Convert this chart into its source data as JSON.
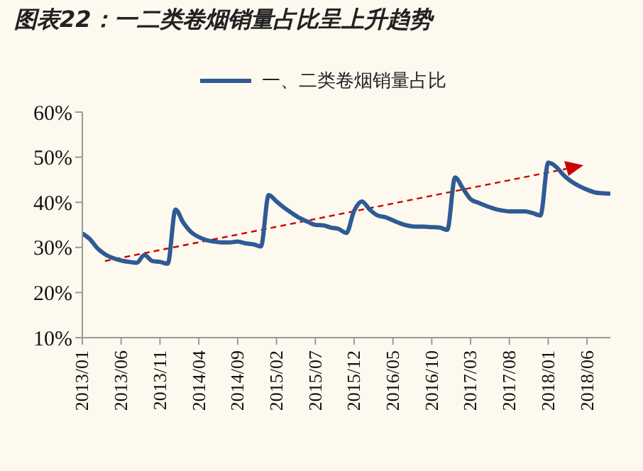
{
  "chart_data": {
    "type": "line",
    "title": "图表22：一二类卷烟销量占比呈上升趋势",
    "x": [
      "2013-01",
      "2013-02",
      "2013-03",
      "2013-04",
      "2013-05",
      "2013-06",
      "2013-07",
      "2013-08",
      "2013-09",
      "2013-10",
      "2013-11",
      "2013-12",
      "2014-01",
      "2014-02",
      "2014-03",
      "2014-04",
      "2014-05",
      "2014-06",
      "2014-07",
      "2014-08",
      "2014-09",
      "2014-10",
      "2014-11",
      "2014-12",
      "2015-01",
      "2015-02",
      "2015-03",
      "2015-04",
      "2015-05",
      "2015-06",
      "2015-07",
      "2015-08",
      "2015-09",
      "2015-10",
      "2015-11",
      "2015-12",
      "2016-01",
      "2016-02",
      "2016-03",
      "2016-04",
      "2016-05",
      "2016-06",
      "2016-07",
      "2016-08",
      "2016-09",
      "2016-10",
      "2016-11",
      "2016-12",
      "2017-01",
      "2017-02",
      "2017-03",
      "2017-04",
      "2017-05",
      "2017-06",
      "2017-07",
      "2017-08",
      "2017-09",
      "2017-10",
      "2017-11",
      "2017-12",
      "2018-01",
      "2018-02",
      "2018-03",
      "2018-04",
      "2018-05",
      "2018-06",
      "2018-07",
      "2018-08",
      "2018-09"
    ],
    "series": [
      {
        "name": "一、二类卷烟销量占比",
        "color": "#2e5b93",
        "values": [
          33.1,
          31.8,
          29.7,
          28.4,
          27.6,
          27.1,
          26.8,
          26.6,
          28.3,
          27.0,
          26.8,
          26.4,
          38.4,
          35.5,
          33.4,
          32.3,
          31.6,
          31.3,
          31.1,
          31.1,
          31.3,
          30.9,
          30.7,
          30.2,
          41.6,
          40.2,
          38.8,
          37.6,
          36.5,
          35.7,
          35.0,
          34.9,
          34.4,
          34.1,
          33.2,
          38.1,
          40.2,
          38.4,
          37.1,
          36.7,
          36.0,
          35.3,
          34.8,
          34.6,
          34.6,
          34.5,
          34.4,
          33.9,
          45.5,
          43.1,
          40.7,
          39.9,
          39.2,
          38.6,
          38.2,
          38.0,
          38.0,
          38.0,
          37.6,
          37.1,
          48.8,
          47.9,
          46.0,
          44.6,
          43.6,
          42.8,
          42.2,
          42.0,
          41.9
        ]
      }
    ],
    "xlim": [
      "2013-01",
      "2018-09"
    ],
    "xticks": [
      {
        "value": "2013-01",
        "label": "2013/01"
      },
      {
        "value": "2013-06",
        "label": "2013/06"
      },
      {
        "value": "2013-11",
        "label": "2013/11"
      },
      {
        "value": "2014-04",
        "label": "2014/04"
      },
      {
        "value": "2014-09",
        "label": "2014/09"
      },
      {
        "value": "2015-02",
        "label": "2015/02"
      },
      {
        "value": "2015-07",
        "label": "2015/07"
      },
      {
        "value": "2015-12",
        "label": "2015/12"
      },
      {
        "value": "2016-05",
        "label": "2016/05"
      },
      {
        "value": "2016-10",
        "label": "2016/10"
      },
      {
        "value": "2017-03",
        "label": "2017/03"
      },
      {
        "value": "2017-08",
        "label": "2017/08"
      },
      {
        "value": "2018-01",
        "label": "2018/01"
      },
      {
        "value": "2018-06",
        "label": "2018/06"
      }
    ],
    "ylim": [
      10,
      60
    ],
    "yticks": [
      {
        "value": 10,
        "label": "10%"
      },
      {
        "value": 20,
        "label": "20%"
      },
      {
        "value": 30,
        "label": "30%"
      },
      {
        "value": 40,
        "label": "40%"
      },
      {
        "value": 50,
        "label": "50%"
      },
      {
        "value": 60,
        "label": "60%"
      }
    ],
    "grid": false,
    "legend": "top",
    "line_style": "solid",
    "marker": "none"
  }
}
